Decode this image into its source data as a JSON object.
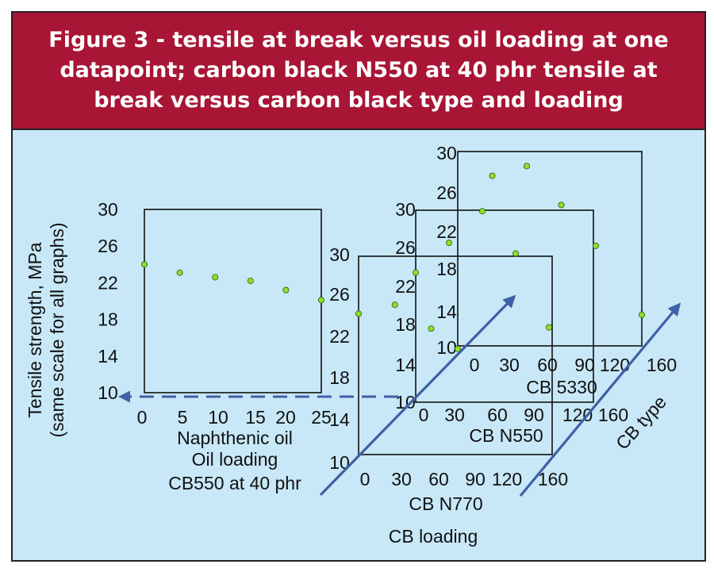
{
  "title": "Figure 3 - tensile at break versus oil loading at one datapoint; carbon black N550 at 40 phr tensile at break versus carbon black type and loading",
  "colors": {
    "title_band": "#a81535",
    "background": "#c8e8f8",
    "point": "#8ee02a",
    "arrow": "#3f60a6",
    "dash": "#3f60a6"
  },
  "ylabel": [
    "Tensile strength, MPa",
    "(same scale for all graphs)"
  ],
  "cb_loading_label": "CB loading",
  "cb_type_label": "CB type",
  "chart_data": [
    {
      "type": "scatter",
      "xlabel": [
        "Naphthenic oil",
        "Oil loading",
        "CB550 at 40 phr"
      ],
      "xlim": [
        0,
        25
      ],
      "ylim": [
        10,
        30
      ],
      "xticks": [
        "0",
        "5",
        "10",
        "15",
        "20",
        "25"
      ],
      "yticks": [
        "10",
        "14",
        "18",
        "22",
        "26",
        "30"
      ],
      "x": [
        0,
        5,
        10,
        15,
        20,
        25
      ],
      "y": [
        24,
        23.1,
        22.6,
        22.2,
        21.2,
        20.1
      ]
    },
    {
      "type": "scatter",
      "xlabel": [
        "CB N770"
      ],
      "xlim": [
        0,
        160
      ],
      "ylim": [
        10,
        30
      ],
      "xticks": [
        "0",
        "30",
        "60",
        "90",
        "120",
        "160"
      ],
      "yticks": [
        "10",
        "14",
        "18",
        "22",
        "26",
        "30"
      ],
      "x": [
        0,
        30,
        60
      ],
      "y": [
        24.2,
        25.1,
        22.7
      ]
    },
    {
      "type": "scatter",
      "xlabel": [
        "CB N550"
      ],
      "xlim": [
        0,
        160
      ],
      "ylim": [
        10,
        30
      ],
      "xticks": [
        "0",
        "30",
        "60",
        "90",
        "120",
        "160"
      ],
      "yticks": [
        "10",
        "14",
        "18",
        "22",
        "26",
        "30"
      ],
      "x": [
        0,
        30,
        60,
        90,
        120
      ],
      "y": [
        23.5,
        26.6,
        29.9,
        25.5,
        17.8
      ]
    },
    {
      "type": "scatter",
      "xlabel": [
        "CB 5330"
      ],
      "xlim": [
        0,
        160
      ],
      "ylim": [
        10,
        30
      ],
      "xticks": [
        "0",
        "30",
        "60",
        "90",
        "120",
        "160"
      ],
      "yticks": [
        "10",
        "14",
        "18",
        "22",
        "26",
        "30"
      ],
      "x": [
        0,
        30,
        60,
        90,
        120,
        160
      ],
      "y": [
        9.7,
        27.5,
        28.5,
        24.5,
        20.3,
        13.2
      ]
    }
  ]
}
